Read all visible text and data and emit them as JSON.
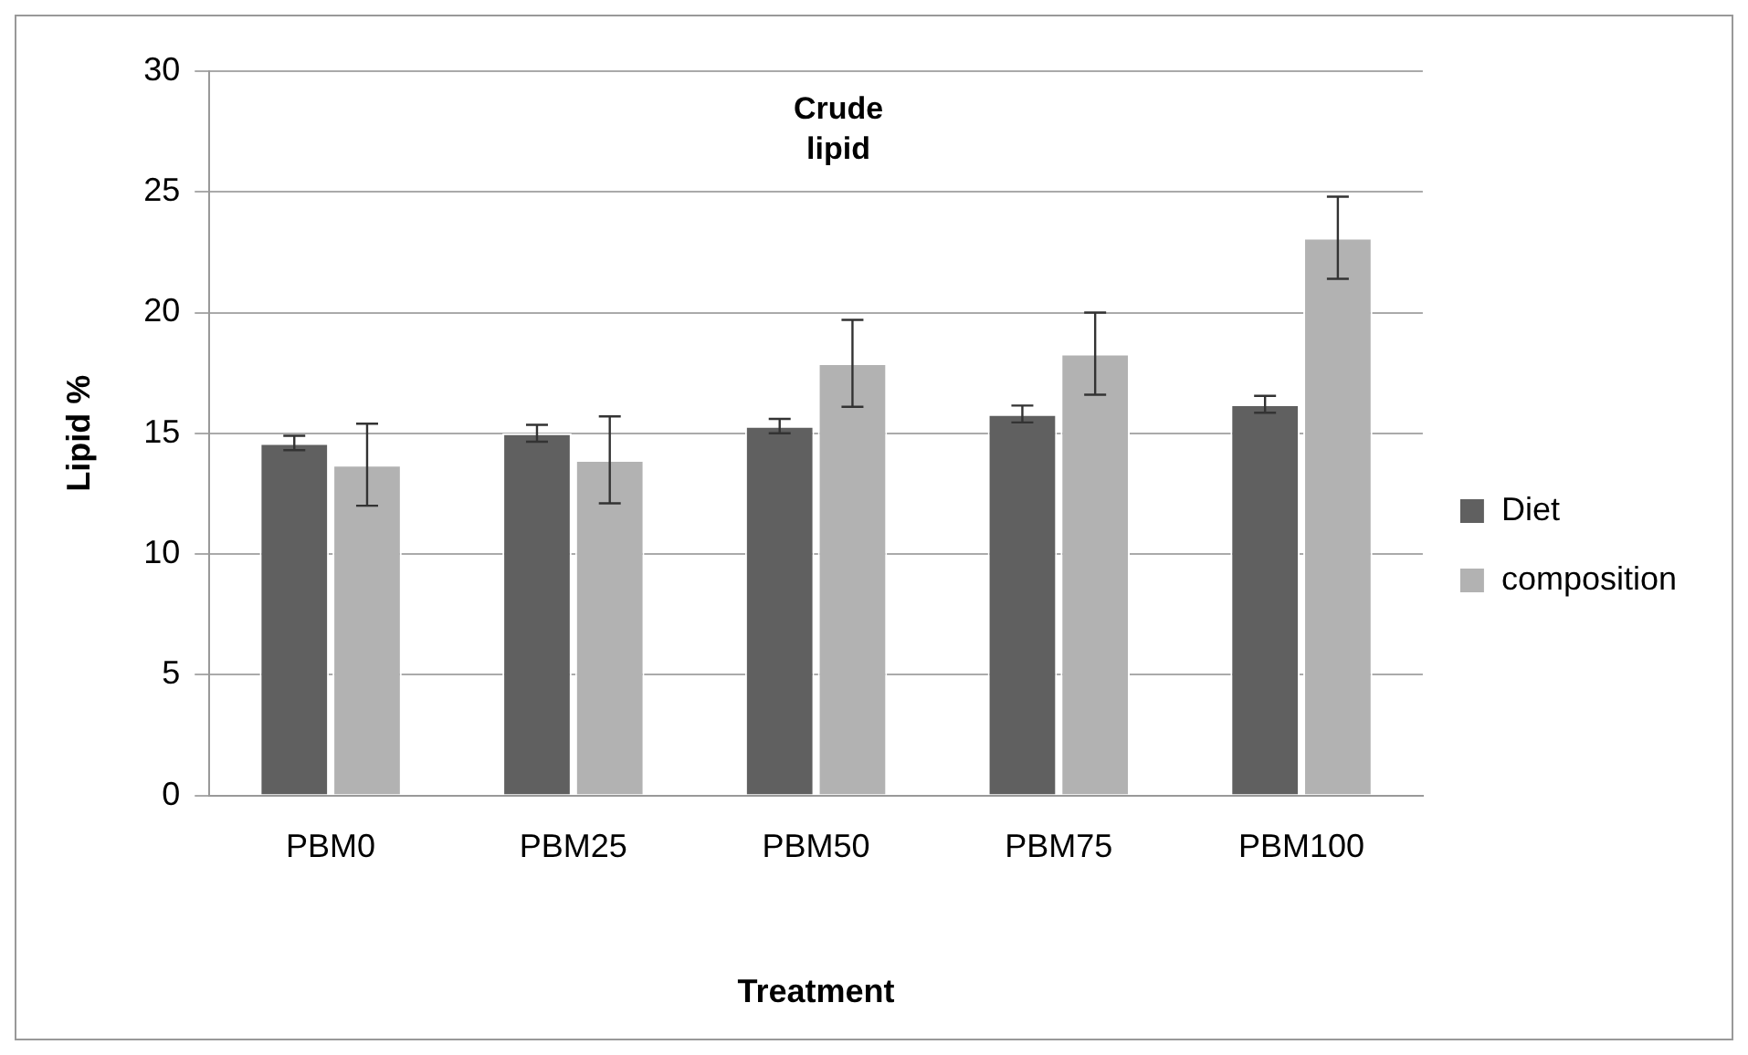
{
  "chart_data": {
    "type": "bar",
    "title": "Crude lipid",
    "xlabel": "Treatment",
    "ylabel": "Lipid %",
    "categories": [
      "PBM0",
      "PBM25",
      "PBM50",
      "PBM75",
      "PBM100"
    ],
    "series": [
      {
        "name": "Diet",
        "color": "#606060",
        "values": [
          14.6,
          15.0,
          15.3,
          15.8,
          16.2
        ],
        "errors": [
          0.3,
          0.35,
          0.3,
          0.35,
          0.35
        ]
      },
      {
        "name": "composition",
        "color": "#b2b2b2",
        "values": [
          13.7,
          13.9,
          17.9,
          18.3,
          23.1
        ],
        "errors": [
          1.7,
          1.8,
          1.8,
          1.7,
          1.7
        ]
      }
    ],
    "ylim": [
      0,
      30
    ],
    "yticks": [
      0,
      5,
      10,
      15,
      20,
      25,
      30
    ],
    "grid": "y",
    "legend": "right"
  }
}
